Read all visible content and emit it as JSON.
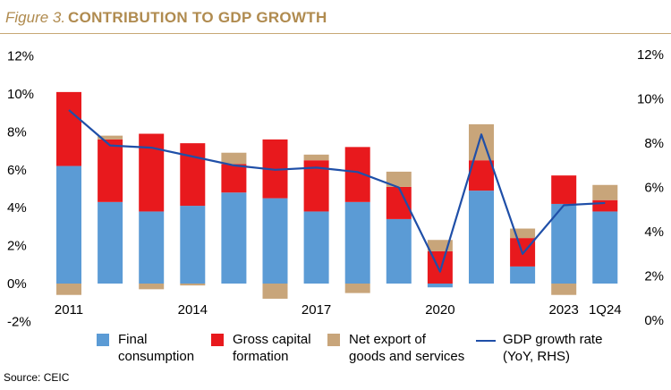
{
  "figure": {
    "label": "Figure 3.",
    "title": "CONTRIBUTION TO GDP GROWTH",
    "source": "Source: CEIC"
  },
  "colors": {
    "accent": "#b08b4f",
    "final_consumption": "#5b9bd5",
    "gross_capital_formation": "#e8191d",
    "net_export": "#c8a57a",
    "gdp_line": "#1f4fa8"
  },
  "legend": {
    "final_consumption": "Final\nconsumption",
    "gross_capital": "Gross capital\nformation",
    "net_export": "Net export of\ngoods and services",
    "gdp_growth": "GDP growth rate\n(YoY, RHS)"
  },
  "chart_data": {
    "type": "bar",
    "stacked": true,
    "x": [
      "2011",
      "2012",
      "2013",
      "2014",
      "2015",
      "2016",
      "2017",
      "2018",
      "2019",
      "2020",
      "2021",
      "2022",
      "2023",
      "1Q24"
    ],
    "tick_labels": [
      "2011",
      "",
      "",
      "2014",
      "",
      "",
      "2017",
      "",
      "",
      "2020",
      "",
      "",
      "2023",
      "1Q24"
    ],
    "series": [
      {
        "name": "Final consumption",
        "values": [
          6.2,
          4.3,
          3.8,
          4.1,
          4.8,
          4.5,
          3.8,
          4.3,
          3.4,
          -0.2,
          4.9,
          0.9,
          4.2,
          3.8
        ]
      },
      {
        "name": "Gross capital formation",
        "values": [
          3.9,
          3.3,
          4.1,
          3.3,
          1.5,
          3.1,
          2.7,
          2.9,
          1.7,
          1.7,
          1.6,
          1.5,
          1.5,
          0.6
        ]
      },
      {
        "name": "Net export of goods and services",
        "values": [
          -0.6,
          0.2,
          -0.3,
          -0.1,
          0.6,
          -0.8,
          0.3,
          -0.5,
          0.8,
          0.6,
          1.9,
          0.5,
          -0.6,
          0.8
        ]
      }
    ],
    "line_series": {
      "name": "GDP growth rate (YoY, RHS)",
      "values": [
        9.5,
        7.9,
        7.8,
        7.4,
        7.0,
        6.8,
        6.9,
        6.7,
        6.0,
        2.2,
        8.4,
        3.0,
        5.2,
        5.3
      ]
    },
    "y_left": {
      "range": [
        -2,
        12
      ],
      "ticks": [
        -2,
        0,
        2,
        4,
        6,
        8,
        10,
        12
      ],
      "format": "%"
    },
    "y_right": {
      "range": [
        0,
        12
      ],
      "ticks": [
        0,
        2,
        4,
        6,
        8,
        10,
        12
      ],
      "format": "%"
    },
    "grid": false,
    "legend_position": "bottom"
  }
}
